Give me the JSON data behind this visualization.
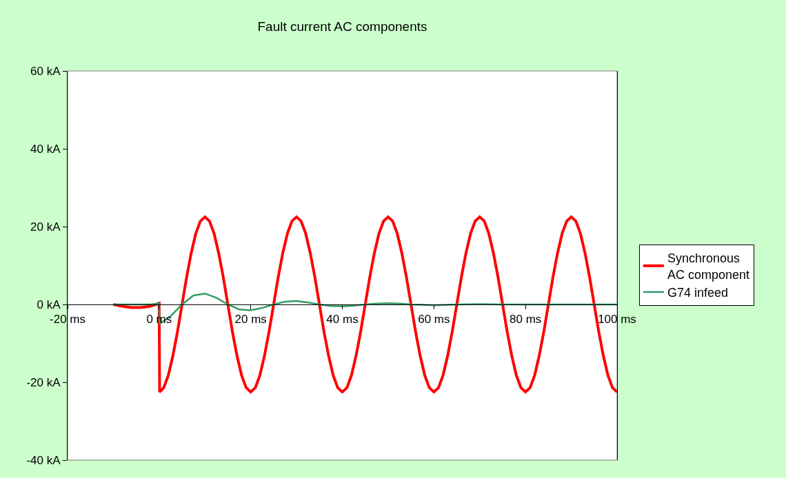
{
  "chart_data": {
    "type": "line",
    "title": "Fault current AC components",
    "xlim": [
      -20,
      100
    ],
    "xticks": [
      {
        "value": -20,
        "label": "-20 ms"
      },
      {
        "value": 0,
        "label": "0 ms"
      },
      {
        "value": 20,
        "label": "20 ms"
      },
      {
        "value": 40,
        "label": "40 ms"
      },
      {
        "value": 60,
        "label": "60 ms"
      },
      {
        "value": 80,
        "label": "80 ms"
      },
      {
        "value": 100,
        "label": "100 ms"
      }
    ],
    "ylim": [
      -40,
      60
    ],
    "yticks": [
      {
        "value": -40,
        "label": "-40 kA"
      },
      {
        "value": -20,
        "label": "-20 kA"
      },
      {
        "value": 0,
        "label": "0 kA"
      },
      {
        "value": 20,
        "label": "20 kA"
      },
      {
        "value": 40,
        "label": "40 kA"
      },
      {
        "value": 60,
        "label": "60 kA"
      }
    ],
    "grid": false,
    "legend": "right",
    "marker": "none",
    "line_style": "solid",
    "series": [
      {
        "name": "Synchronous\nAC component",
        "color": "#ff0000",
        "x": [
          -10,
          -8,
          -6,
          -4,
          -2,
          0,
          0.1,
          1,
          2,
          3,
          4,
          5,
          6,
          7,
          8,
          9,
          10,
          11,
          12,
          13,
          14,
          15,
          16,
          17,
          18,
          19,
          20,
          21,
          22,
          23,
          24,
          25,
          26,
          27,
          28,
          29,
          30,
          31,
          32,
          33,
          34,
          35,
          36,
          37,
          38,
          39,
          40,
          41,
          42,
          43,
          44,
          45,
          46,
          47,
          48,
          49,
          50,
          51,
          52,
          53,
          54,
          55,
          56,
          57,
          58,
          59,
          60,
          61,
          62,
          63,
          64,
          65,
          66,
          67,
          68,
          69,
          70,
          71,
          72,
          73,
          74,
          75,
          76,
          77,
          78,
          79,
          80,
          81,
          82,
          83,
          84,
          85,
          86,
          87,
          88,
          89,
          90,
          91,
          92,
          93,
          94,
          95,
          96,
          97,
          98,
          99,
          100
        ],
        "values": [
          0,
          -0.5,
          -0.8,
          -0.8,
          -0.5,
          0.3,
          -22.5,
          -21.4,
          -18.2,
          -13.2,
          -7.0,
          0,
          7.0,
          13.2,
          18.2,
          21.4,
          22.5,
          21.4,
          18.2,
          13.2,
          7.0,
          0,
          -7.0,
          -13.2,
          -18.2,
          -21.4,
          -22.5,
          -21.4,
          -18.2,
          -13.2,
          -7.0,
          0,
          7.0,
          13.2,
          18.2,
          21.4,
          22.5,
          21.4,
          18.2,
          13.2,
          7.0,
          0,
          -7.0,
          -13.2,
          -18.2,
          -21.4,
          -22.5,
          -21.4,
          -18.2,
          -13.2,
          -7.0,
          0,
          7.0,
          13.2,
          18.2,
          21.4,
          22.5,
          21.4,
          18.2,
          13.2,
          7.0,
          0,
          -7.0,
          -13.2,
          -18.2,
          -21.4,
          -22.5,
          -21.4,
          -18.2,
          -13.2,
          -7.0,
          0,
          7.0,
          13.2,
          18.2,
          21.4,
          22.5,
          21.4,
          18.2,
          13.2,
          7.0,
          0,
          -7.0,
          -13.2,
          -18.2,
          -21.4,
          -22.5,
          -21.4,
          -18.2,
          -13.2,
          -7.0,
          0,
          7.0,
          13.2,
          18.2,
          21.4,
          22.5,
          21.4,
          18.2,
          13.2,
          7.0,
          0,
          -7.0,
          -13.2,
          -18.2,
          -21.4,
          -22.5
        ]
      },
      {
        "name": "G74 infeed",
        "color": "#339966",
        "x": [
          -10,
          -8,
          -6,
          -4,
          -2,
          0,
          0.1,
          2.5,
          5,
          7.5,
          10,
          12.5,
          15,
          17.5,
          20,
          22.5,
          25,
          27.5,
          30,
          32.5,
          35,
          37.5,
          40,
          42.5,
          45,
          47.5,
          50,
          52.5,
          55,
          57.5,
          60,
          65,
          70,
          75,
          80,
          90,
          100
        ],
        "values": [
          0,
          0,
          0,
          0,
          0,
          0.3,
          -5,
          -3.0,
          0,
          2.3,
          2.8,
          1.7,
          0,
          -1.3,
          -1.5,
          -0.9,
          0,
          0.7,
          0.9,
          0.5,
          0,
          -0.4,
          -0.5,
          -0.3,
          0,
          0.2,
          0.3,
          0.2,
          0,
          -0.1,
          -0.2,
          0,
          0.1,
          0,
          0,
          0,
          0
        ]
      }
    ]
  }
}
